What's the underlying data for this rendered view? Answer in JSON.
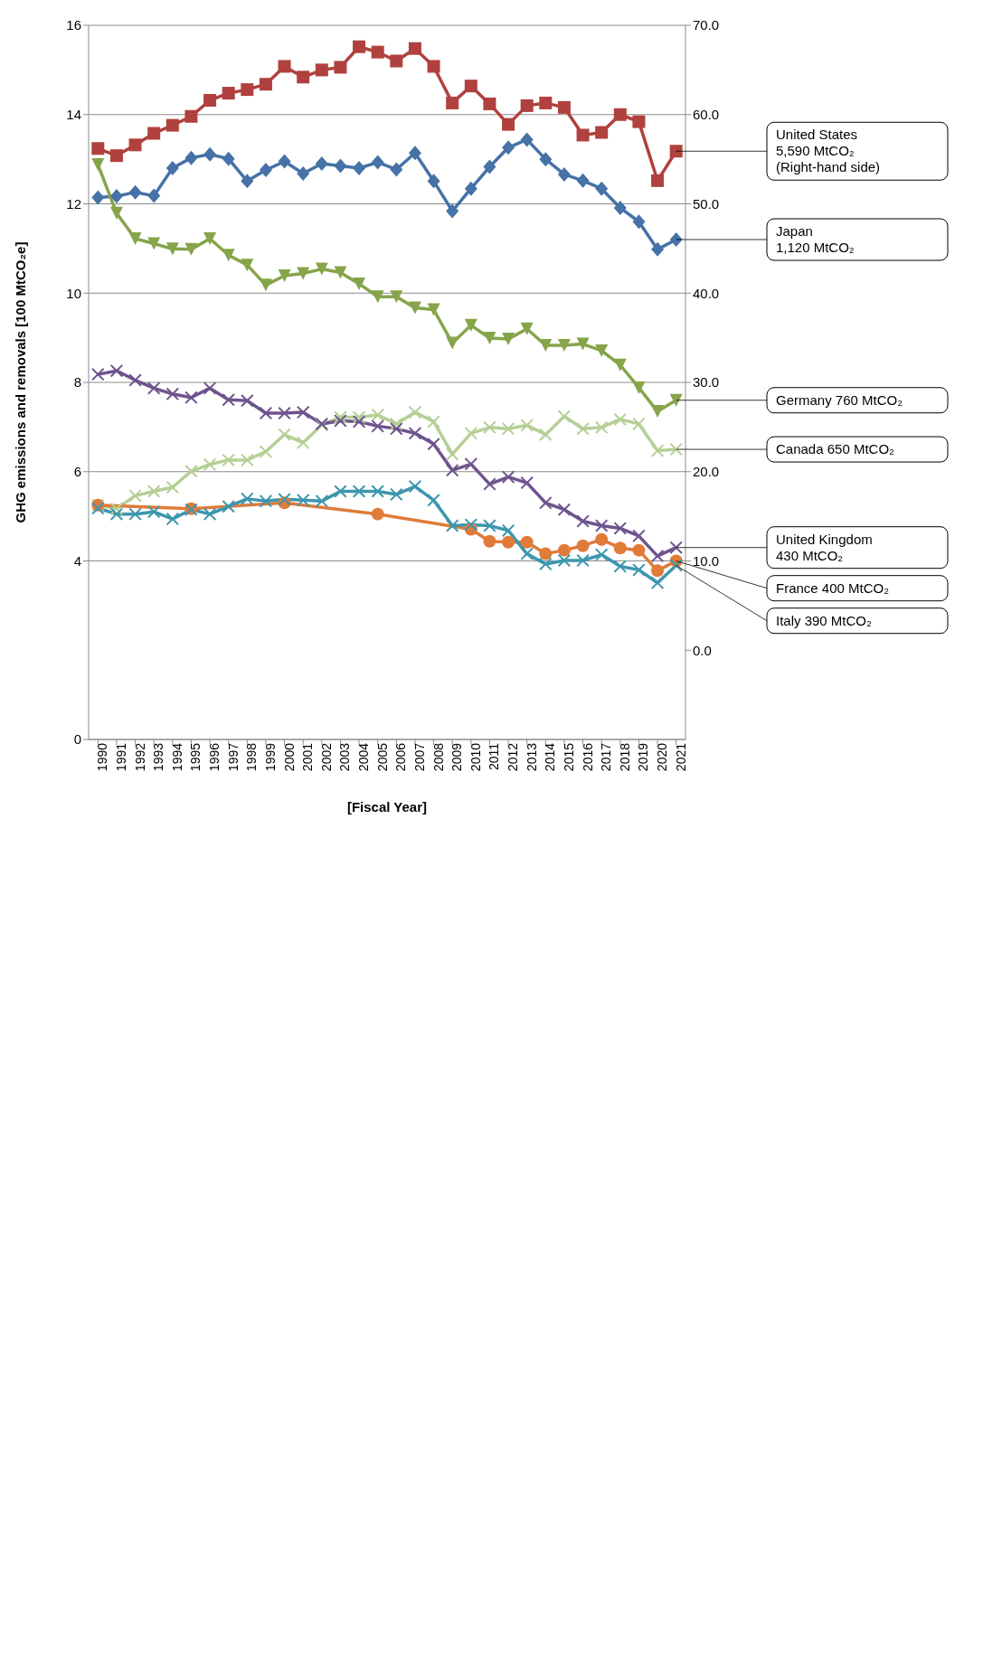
{
  "chart_data": {
    "type": "line",
    "xlabel": "[Fiscal Year]",
    "ylabel": "GHG emissions and removals [100 MtCO₂e]",
    "categories": [
      "1990",
      "1991",
      "1992",
      "1993",
      "1994",
      "1995",
      "1996",
      "1997",
      "1998",
      "1999",
      "2000",
      "2001",
      "2002",
      "2003",
      "2004",
      "2005",
      "2006",
      "2007",
      "2008",
      "2009",
      "2010",
      "2011",
      "2012",
      "2013",
      "2014",
      "2015",
      "2016",
      "2017",
      "2018",
      "2019",
      "2020",
      "2021"
    ],
    "series": [
      {
        "color": "#b0413e",
        "marker": "square",
        "axis": "y2",
        "values": [
          56.2,
          55.4,
          56.6,
          57.9,
          58.8,
          59.8,
          61.6,
          62.4,
          62.8,
          63.4,
          65.4,
          64.2,
          65.0,
          65.3,
          67.6,
          67.0,
          66.0,
          67.4,
          65.4,
          61.3,
          63.2,
          61.2,
          58.9,
          61.0,
          61.3,
          60.8,
          57.7,
          58.0,
          60.0,
          59.2,
          52.6,
          55.9
        ]
      },
      {
        "color": "#4572a7",
        "marker": "diamond",
        "values": [
          12.14,
          12.17,
          12.26,
          12.18,
          12.8,
          13.03,
          13.11,
          13.01,
          12.51,
          12.76,
          12.95,
          12.68,
          12.9,
          12.85,
          12.8,
          12.93,
          12.77,
          13.14,
          12.51,
          11.84,
          12.34,
          12.83,
          13.26,
          13.44,
          13.0,
          12.66,
          12.52,
          12.34,
          11.91,
          11.6,
          10.98,
          11.2
        ]
      },
      {
        "color": "#86a44a",
        "marker": "triangle",
        "values": [
          12.88,
          11.79,
          11.22,
          11.11,
          10.99,
          10.98,
          11.22,
          10.85,
          10.63,
          10.18,
          10.39,
          10.44,
          10.54,
          10.46,
          10.21,
          9.92,
          9.92,
          9.67,
          9.63,
          8.88,
          9.28,
          8.99,
          8.97,
          9.2,
          8.83,
          8.83,
          8.86,
          8.71,
          8.39,
          7.88,
          7.35,
          7.6
        ]
      },
      {
        "color": "#b5cf95",
        "marker": "cross",
        "values": [
          5.25,
          5.17,
          5.46,
          5.56,
          5.65,
          6.01,
          6.16,
          6.26,
          6.26,
          6.45,
          6.83,
          6.65,
          7.05,
          7.22,
          7.22,
          7.27,
          7.07,
          7.33,
          7.12,
          6.39,
          6.86,
          6.99,
          6.96,
          7.04,
          6.83,
          7.24,
          6.96,
          6.99,
          7.17,
          7.07,
          6.47,
          6.5
        ]
      },
      {
        "color": "#6e548d",
        "marker": "cross",
        "values": [
          8.18,
          8.26,
          8.05,
          7.87,
          7.74,
          7.66,
          7.87,
          7.61,
          7.59,
          7.31,
          7.31,
          7.33,
          7.07,
          7.14,
          7.12,
          7.02,
          6.96,
          6.86,
          6.62,
          6.03,
          6.17,
          5.72,
          5.88,
          5.75,
          5.3,
          5.15,
          4.89,
          4.79,
          4.73,
          4.56,
          4.11,
          4.3
        ]
      },
      {
        "color": "#e07b39",
        "marker": "circle",
        "values": [
          5.25,
          null,
          null,
          null,
          null,
          5.17,
          null,
          null,
          null,
          null,
          5.3,
          null,
          null,
          null,
          null,
          5.05,
          null,
          null,
          null,
          null,
          4.71,
          4.44,
          4.42,
          4.42,
          4.16,
          4.24,
          4.34,
          4.48,
          4.29,
          4.24,
          3.78,
          4.0
        ]
      },
      {
        "color": "#3d96ae",
        "marker": "cross",
        "values": [
          5.18,
          5.05,
          5.05,
          5.1,
          4.94,
          5.15,
          5.05,
          5.22,
          5.39,
          5.34,
          5.38,
          5.36,
          5.34,
          5.56,
          5.56,
          5.56,
          5.49,
          5.67,
          5.36,
          4.79,
          4.81,
          4.79,
          4.68,
          4.16,
          3.93,
          4.01,
          4.01,
          4.14,
          3.88,
          3.8,
          3.51,
          3.9
        ]
      }
    ],
    "ylim": [
      0,
      16
    ],
    "yticks": [
      0,
      4,
      6,
      8,
      10,
      12,
      14,
      16
    ],
    "y2lim": [
      -10,
      70
    ],
    "y2ticks": [
      {
        "value": 0,
        "label": "0.0"
      },
      {
        "value": 10,
        "label": "10.0"
      },
      {
        "value": 20,
        "label": "20.0"
      },
      {
        "value": 30,
        "label": "30.0"
      },
      {
        "value": 40,
        "label": "40.0"
      },
      {
        "value": 50,
        "label": "50.0"
      },
      {
        "value": 60,
        "label": "60.0"
      },
      {
        "value": 70,
        "label": "70.0"
      }
    ],
    "grid": "y",
    "line_style": "solid",
    "annotations": [
      {
        "text": "United States\n5,590 MtCO₂\n(Right-hand side)",
        "x": "2021"
      },
      {
        "text": "Japan\n1,120 MtCO₂",
        "x": "2021",
        "y": 11.2
      },
      {
        "text": "Germany 760 MtCO₂",
        "x": "2021",
        "y": 7.6
      },
      {
        "text": "Canada 650 MtCO₂",
        "x": "2021",
        "y": 6.5
      },
      {
        "text": "United Kingdom\n430 MtCO₂",
        "x": "2021",
        "y": 4.3
      },
      {
        "text": "France 400 MtCO₂",
        "x": "2021",
        "y": 4.0
      },
      {
        "text": "Italy 390 MtCO₂",
        "x": "2021",
        "y": 3.9
      }
    ]
  }
}
